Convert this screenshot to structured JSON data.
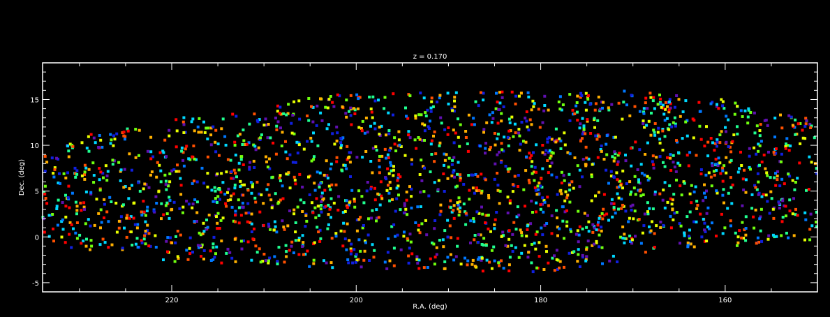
{
  "chart_data": {
    "type": "scatter",
    "title": "z = 0.170",
    "xlabel": "R.A. (deg)",
    "ylabel": "Dec. (deg)",
    "xlim": [
      234,
      150
    ],
    "ylim": [
      -6,
      19
    ],
    "x_reversed": true,
    "x_ticks": [
      220,
      200,
      180,
      160
    ],
    "x_tick_labels": [
      "220",
      "200",
      "180",
      "160"
    ],
    "y_ticks": [
      -5,
      0,
      5,
      10,
      15
    ],
    "y_tick_labels": [
      "-5",
      "0",
      "5",
      "10",
      "15"
    ],
    "background": "#000000",
    "axis_color": "#ffffff",
    "palette": [
      "#1020e0",
      "#0078ff",
      "#00d8ff",
      "#20ff90",
      "#70ff10",
      "#e8ff00",
      "#ffb000",
      "#ff5000",
      "#ff0000",
      "#6010b0"
    ],
    "grid": false,
    "footprint": [
      [
        234,
        9
      ],
      [
        228,
        11.5
      ],
      [
        222,
        12.5
      ],
      [
        216,
        13.5
      ],
      [
        210,
        14
      ],
      [
        204,
        15.5
      ],
      [
        196,
        15.8
      ],
      [
        188,
        15.8
      ],
      [
        176,
        16
      ],
      [
        168,
        16
      ],
      [
        160,
        15
      ],
      [
        155,
        13.5
      ],
      [
        150,
        13
      ],
      [
        150,
        -0.5
      ],
      [
        156,
        -1
      ],
      [
        162,
        -1
      ],
      [
        168,
        -1.5
      ],
      [
        174,
        -3.5
      ],
      [
        180,
        -3.8
      ],
      [
        186,
        -3.8
      ],
      [
        192,
        -3.6
      ],
      [
        198,
        -3.5
      ],
      [
        204,
        -3.5
      ],
      [
        210,
        -3
      ],
      [
        216,
        -3
      ],
      [
        222,
        -2.5
      ],
      [
        228,
        -2
      ],
      [
        234,
        -1
      ]
    ],
    "seed": 170,
    "n_points": 2300
  }
}
